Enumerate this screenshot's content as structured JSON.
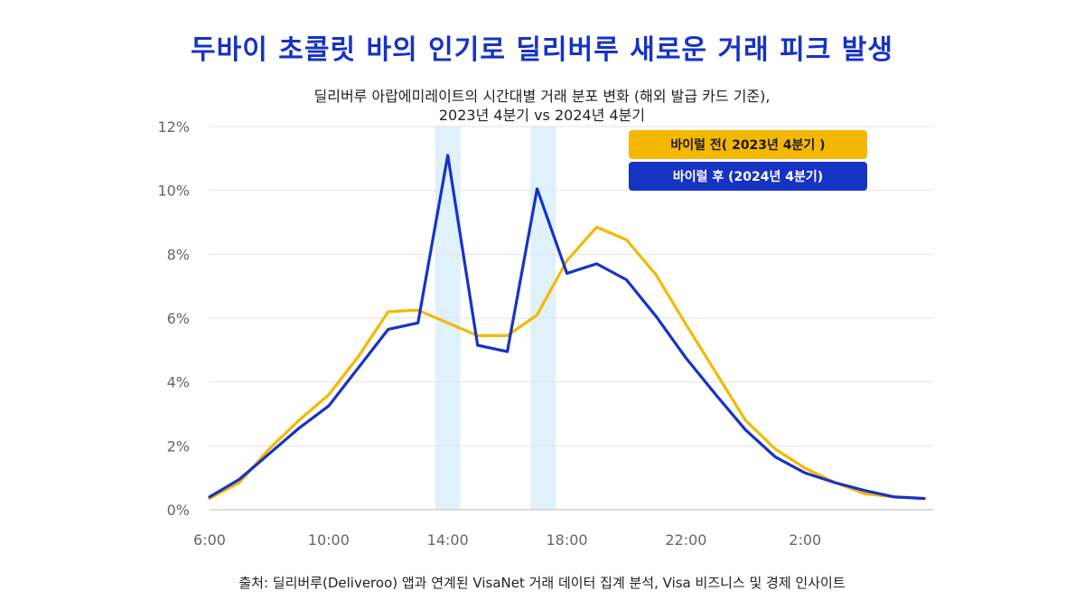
{
  "title": "두바이 초콜릿 바의 인기로 딜리버루 새로운 거래 피크 발생",
  "subtitle_line1": "딜리버루 아랍에미레이트의 시간대별 거래 분포 변화 (해외 발급 카드 기준),",
  "subtitle_line2": "2023년 4분기 vs 2024년 4분기",
  "source": "출처: 딜리버루(Deliveroo) 앱과 연계된 VisaNet 거래 데이터 집계 분석, Visa 비즈니스 및 경제 인사이트",
  "colors": {
    "before": "#f5b800",
    "after": "#1733c4",
    "highlight": "#dff1fb"
  },
  "chart_data": {
    "type": "line",
    "x": [
      6,
      7,
      8,
      9,
      10,
      11,
      12,
      13,
      14,
      15,
      16,
      17,
      18,
      19,
      20,
      21,
      22,
      23,
      24,
      25,
      26,
      27,
      28,
      29,
      30
    ],
    "x_tick_values": [
      6,
      10,
      14,
      18,
      22,
      26
    ],
    "x_tick_labels": [
      "6:00",
      "10:00",
      "14:00",
      "18:00",
      "22:00",
      "2:00"
    ],
    "y_ticks": [
      0,
      2,
      4,
      6,
      8,
      10,
      12
    ],
    "y_tick_labels": [
      "0%",
      "2%",
      "4%",
      "6%",
      "8%",
      "10%",
      "12%"
    ],
    "ylim": [
      0,
      12
    ],
    "xlim": [
      6,
      30.3
    ],
    "highlight_x": [
      14,
      17.2
    ],
    "series": [
      {
        "name": "바이럴 전( 2023년 4분기 )",
        "color": "#f5b800",
        "values": [
          0.35,
          0.85,
          1.9,
          2.8,
          3.6,
          4.8,
          6.2,
          6.25,
          5.85,
          5.45,
          5.45,
          6.1,
          7.8,
          8.85,
          8.45,
          7.35,
          5.8,
          4.3,
          2.8,
          1.9,
          1.3,
          0.85,
          0.5,
          0.4,
          0.35
        ]
      },
      {
        "name": "바이럴 후 (2024년 4분기)",
        "color": "#1733c4",
        "values": [
          0.4,
          0.95,
          1.75,
          2.55,
          3.25,
          4.45,
          5.65,
          5.85,
          11.1,
          5.15,
          4.95,
          10.05,
          7.4,
          7.7,
          7.2,
          6.05,
          4.75,
          3.6,
          2.5,
          1.65,
          1.15,
          0.85,
          0.6,
          0.4,
          0.35
        ]
      }
    ],
    "grid": "horizontal",
    "legend_position": "top-right"
  }
}
